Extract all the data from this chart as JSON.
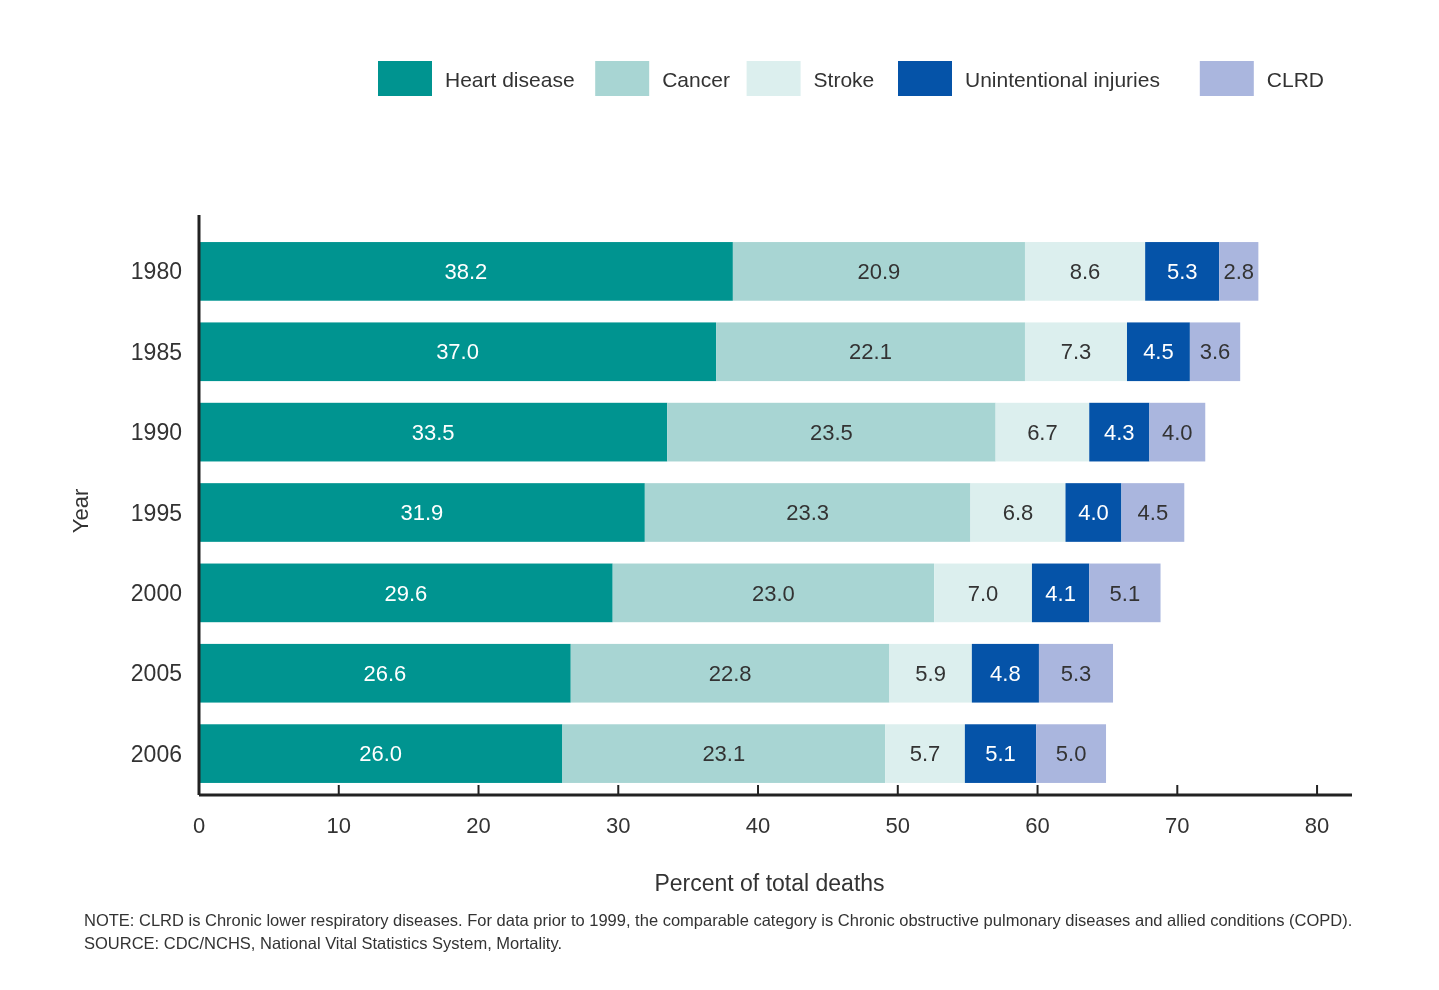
{
  "chart_data": {
    "type": "bar",
    "orientation": "horizontal",
    "stacked": true,
    "legend": "top",
    "categories": [
      "1980",
      "1985",
      "1990",
      "1995",
      "2000",
      "2005",
      "2006"
    ],
    "series": [
      {
        "name": "Heart disease",
        "color": "#009490",
        "values": [
          38.2,
          37.0,
          33.5,
          31.9,
          29.6,
          26.6,
          26.0
        ],
        "value_labels": [
          "38.2",
          "37.0",
          "33.5",
          "31.9",
          "29.6",
          "26.6",
          "26.0"
        ]
      },
      {
        "name": "Cancer",
        "color": "#a8d5d3",
        "values": [
          20.9,
          22.1,
          23.5,
          23.3,
          23.0,
          22.8,
          23.1
        ],
        "value_labels": [
          "20.9",
          "22.1",
          "23.5",
          "23.3",
          "23.0",
          "22.8",
          "23.1"
        ]
      },
      {
        "name": "Stroke",
        "color": "#dcefee",
        "values": [
          8.6,
          7.3,
          6.7,
          6.8,
          7.0,
          5.9,
          5.7
        ],
        "value_labels": [
          "8.6",
          "7.3",
          "6.7",
          "6.8",
          "7.0",
          "5.9",
          "5.7"
        ]
      },
      {
        "name": "Unintentional injuries",
        "color": "#0553a8",
        "values": [
          5.3,
          4.5,
          4.3,
          4.0,
          4.1,
          4.8,
          5.1
        ],
        "value_labels": [
          "5.3",
          "4.5",
          "4.3",
          "4.0",
          "4.1",
          "4.8",
          "5.1"
        ]
      },
      {
        "name": "CLRD",
        "color": "#aab6de",
        "values": [
          2.8,
          3.6,
          4.0,
          4.5,
          5.1,
          5.3,
          5.0
        ],
        "value_labels": [
          "2.8",
          "3.6",
          "4.0",
          "4.5",
          "5.1",
          "5.3",
          "5.0"
        ]
      }
    ],
    "xlim": [
      0,
      82.5
    ],
    "xticks": [
      0,
      10,
      20,
      30,
      40,
      50,
      60,
      70,
      80
    ],
    "xlabel": "Percent of total deaths",
    "ylabel": "Year",
    "annotations": [
      "NOTE: CLRD is Chronic lower respiratory diseases. For data prior to 1999, the comparable category is Chronic obstructive pulmonary diseases and allied conditions (COPD).",
      "SOURCE: CDC/NCHS, National Vital Statistics System, Mortality."
    ]
  }
}
